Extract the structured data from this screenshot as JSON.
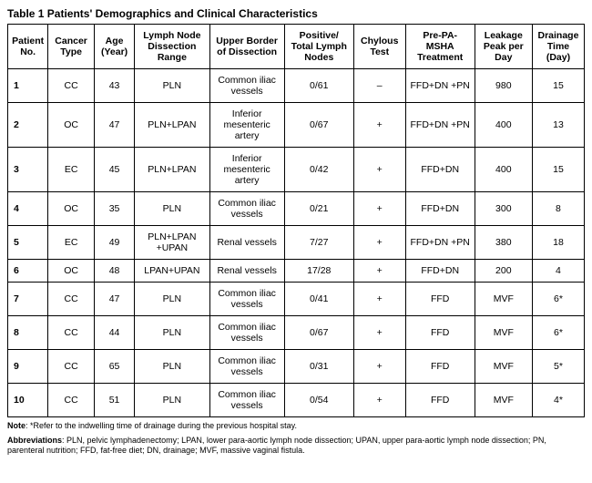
{
  "title": "Table 1 Patients' Demographics and Clinical Characteristics",
  "columns": [
    "Patient No.",
    "Cancer Type",
    "Age (Year)",
    "Lymph Node Dissection Range",
    "Upper Border of Dissection",
    "Positive/ Total Lymph Nodes",
    "Chylous Test",
    "Pre-PA-MSHA Treatment",
    "Leakage Peak per Day",
    "Drainage Time (Day)"
  ],
  "rows": [
    {
      "no": "1",
      "type": "CC",
      "age": "43",
      "range": "PLN",
      "upper": "Common iliac vessels",
      "nodes": "0/61",
      "chyl": "–",
      "pre": "FFD+DN +PN",
      "leak": "980",
      "drain": "15"
    },
    {
      "no": "2",
      "type": "OC",
      "age": "47",
      "range": "PLN+LPAN",
      "upper": "Inferior mesenteric artery",
      "nodes": "0/67",
      "chyl": "+",
      "pre": "FFD+DN +PN",
      "leak": "400",
      "drain": "13"
    },
    {
      "no": "3",
      "type": "EC",
      "age": "45",
      "range": "PLN+LPAN",
      "upper": "Inferior mesenteric artery",
      "nodes": "0/42",
      "chyl": "+",
      "pre": "FFD+DN",
      "leak": "400",
      "drain": "15"
    },
    {
      "no": "4",
      "type": "OC",
      "age": "35",
      "range": "PLN",
      "upper": "Common iliac vessels",
      "nodes": "0/21",
      "chyl": "+",
      "pre": "FFD+DN",
      "leak": "300",
      "drain": "8"
    },
    {
      "no": "5",
      "type": "EC",
      "age": "49",
      "range": "PLN+LPAN +UPAN",
      "upper": "Renal vessels",
      "nodes": "7/27",
      "chyl": "+",
      "pre": "FFD+DN +PN",
      "leak": "380",
      "drain": "18"
    },
    {
      "no": "6",
      "type": "OC",
      "age": "48",
      "range": "LPAN+UPAN",
      "upper": "Renal vessels",
      "nodes": "17/28",
      "chyl": "+",
      "pre": "FFD+DN",
      "leak": "200",
      "drain": "4"
    },
    {
      "no": "7",
      "type": "CC",
      "age": "47",
      "range": "PLN",
      "upper": "Common iliac vessels",
      "nodes": "0/41",
      "chyl": "+",
      "pre": "FFD",
      "leak": "MVF",
      "drain": "6*"
    },
    {
      "no": "8",
      "type": "CC",
      "age": "44",
      "range": "PLN",
      "upper": "Common iliac vessels",
      "nodes": "0/67",
      "chyl": "+",
      "pre": "FFD",
      "leak": "MVF",
      "drain": "6*"
    },
    {
      "no": "9",
      "type": "CC",
      "age": "65",
      "range": "PLN",
      "upper": "Common iliac vessels",
      "nodes": "0/31",
      "chyl": "+",
      "pre": "FFD",
      "leak": "MVF",
      "drain": "5*"
    },
    {
      "no": "10",
      "type": "CC",
      "age": "51",
      "range": "PLN",
      "upper": "Common iliac vessels",
      "nodes": "0/54",
      "chyl": "+",
      "pre": "FFD",
      "leak": "MVF",
      "drain": "4*"
    }
  ],
  "note_label": "Note",
  "note_text": ": *Refer to the indwelling time of drainage during the previous hospital stay.",
  "abbrev_label": "Abbreviations",
  "abbrev_text": ": PLN, pelvic lymphadenectomy; LPAN, lower para-aortic lymph node dissection; UPAN, upper para-aortic lymph node dissection; PN, parenteral nutrition; FFD, fat-free diet; DN, drainage; MVF, massive vaginal fistula."
}
